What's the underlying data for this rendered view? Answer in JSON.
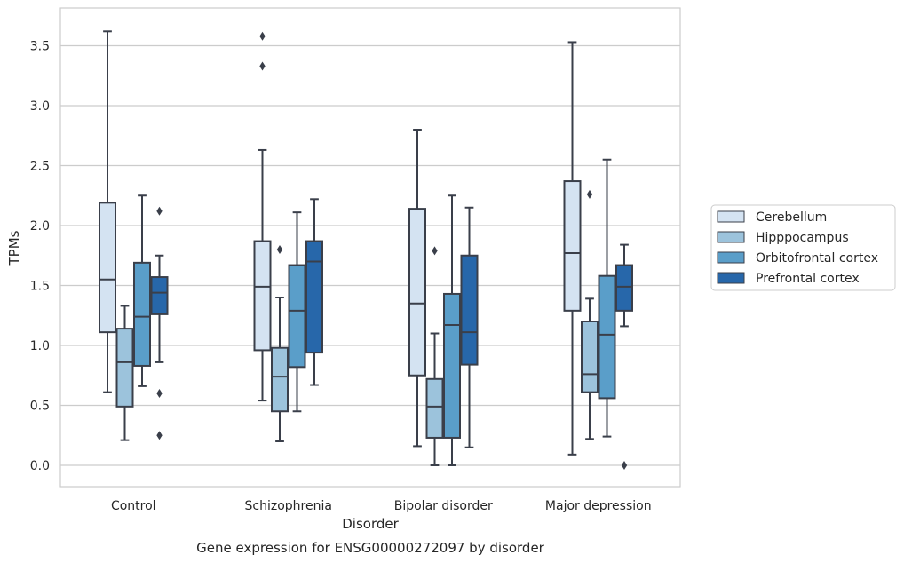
{
  "chart_data": {
    "type": "box",
    "title": "",
    "caption": "Gene expression for ENSG00000272097 by disorder",
    "xlabel": "Disorder",
    "ylabel": "TPMs",
    "categories": [
      "Control",
      "Schizophrenia",
      "Bipolar disorder",
      "Major depression"
    ],
    "ylim": [
      -0.17,
      3.8
    ],
    "yticks": [
      "0.0",
      "0.5",
      "1.0",
      "1.5",
      "2.0",
      "2.5",
      "3.0",
      "3.5"
    ],
    "grid": "horizontal",
    "legend_position": "right",
    "series": [
      {
        "name": "Cerebellum",
        "color": "#d4e3f2",
        "boxes": [
          {
            "whislo": 0.61,
            "q1": 1.11,
            "med": 1.55,
            "q3": 2.19,
            "whishi": 3.62,
            "fliers": []
          },
          {
            "whislo": 0.54,
            "q1": 0.96,
            "med": 1.49,
            "q3": 1.87,
            "whishi": 2.63,
            "fliers": [
              3.58,
              3.33
            ]
          },
          {
            "whislo": 0.16,
            "q1": 0.75,
            "med": 1.35,
            "q3": 2.14,
            "whishi": 2.8,
            "fliers": []
          },
          {
            "whislo": 0.09,
            "q1": 1.29,
            "med": 1.77,
            "q3": 2.37,
            "whishi": 3.53,
            "fliers": []
          }
        ]
      },
      {
        "name": "Hipppocampus",
        "color": "#9cc3dc",
        "boxes": [
          {
            "whislo": 0.21,
            "q1": 0.49,
            "med": 0.86,
            "q3": 1.14,
            "whishi": 1.33,
            "fliers": []
          },
          {
            "whislo": 0.2,
            "q1": 0.45,
            "med": 0.74,
            "q3": 0.98,
            "whishi": 1.4,
            "fliers": [
              1.8
            ]
          },
          {
            "whislo": 0.0,
            "q1": 0.23,
            "med": 0.49,
            "q3": 0.72,
            "whishi": 1.1,
            "fliers": [
              1.79
            ]
          },
          {
            "whislo": 0.22,
            "q1": 0.61,
            "med": 0.76,
            "q3": 1.2,
            "whishi": 1.39,
            "fliers": [
              2.26
            ]
          }
        ]
      },
      {
        "name": "Orbitofrontal cortex",
        "color": "#5a9ec9",
        "boxes": [
          {
            "whislo": 0.66,
            "q1": 0.83,
            "med": 1.24,
            "q3": 1.69,
            "whishi": 2.25,
            "fliers": []
          },
          {
            "whislo": 0.45,
            "q1": 0.82,
            "med": 1.29,
            "q3": 1.67,
            "whishi": 2.11,
            "fliers": []
          },
          {
            "whislo": 0.0,
            "q1": 0.23,
            "med": 1.17,
            "q3": 1.43,
            "whishi": 2.25,
            "fliers": []
          },
          {
            "whislo": 0.24,
            "q1": 0.56,
            "med": 1.09,
            "q3": 1.58,
            "whishi": 2.55,
            "fliers": []
          }
        ]
      },
      {
        "name": "Prefrontal cortex",
        "color": "#2767aa",
        "boxes": [
          {
            "whislo": 0.86,
            "q1": 1.26,
            "med": 1.44,
            "q3": 1.57,
            "whishi": 1.75,
            "fliers": [
              2.12,
              0.6,
              0.25
            ]
          },
          {
            "whislo": 0.67,
            "q1": 0.94,
            "med": 1.7,
            "q3": 1.87,
            "whishi": 2.22,
            "fliers": []
          },
          {
            "whislo": 0.15,
            "q1": 0.84,
            "med": 1.11,
            "q3": 1.75,
            "whishi": 2.15,
            "fliers": []
          },
          {
            "whislo": 1.16,
            "q1": 1.29,
            "med": 1.49,
            "q3": 1.67,
            "whishi": 1.84,
            "fliers": [
              0.0
            ]
          }
        ]
      }
    ]
  }
}
